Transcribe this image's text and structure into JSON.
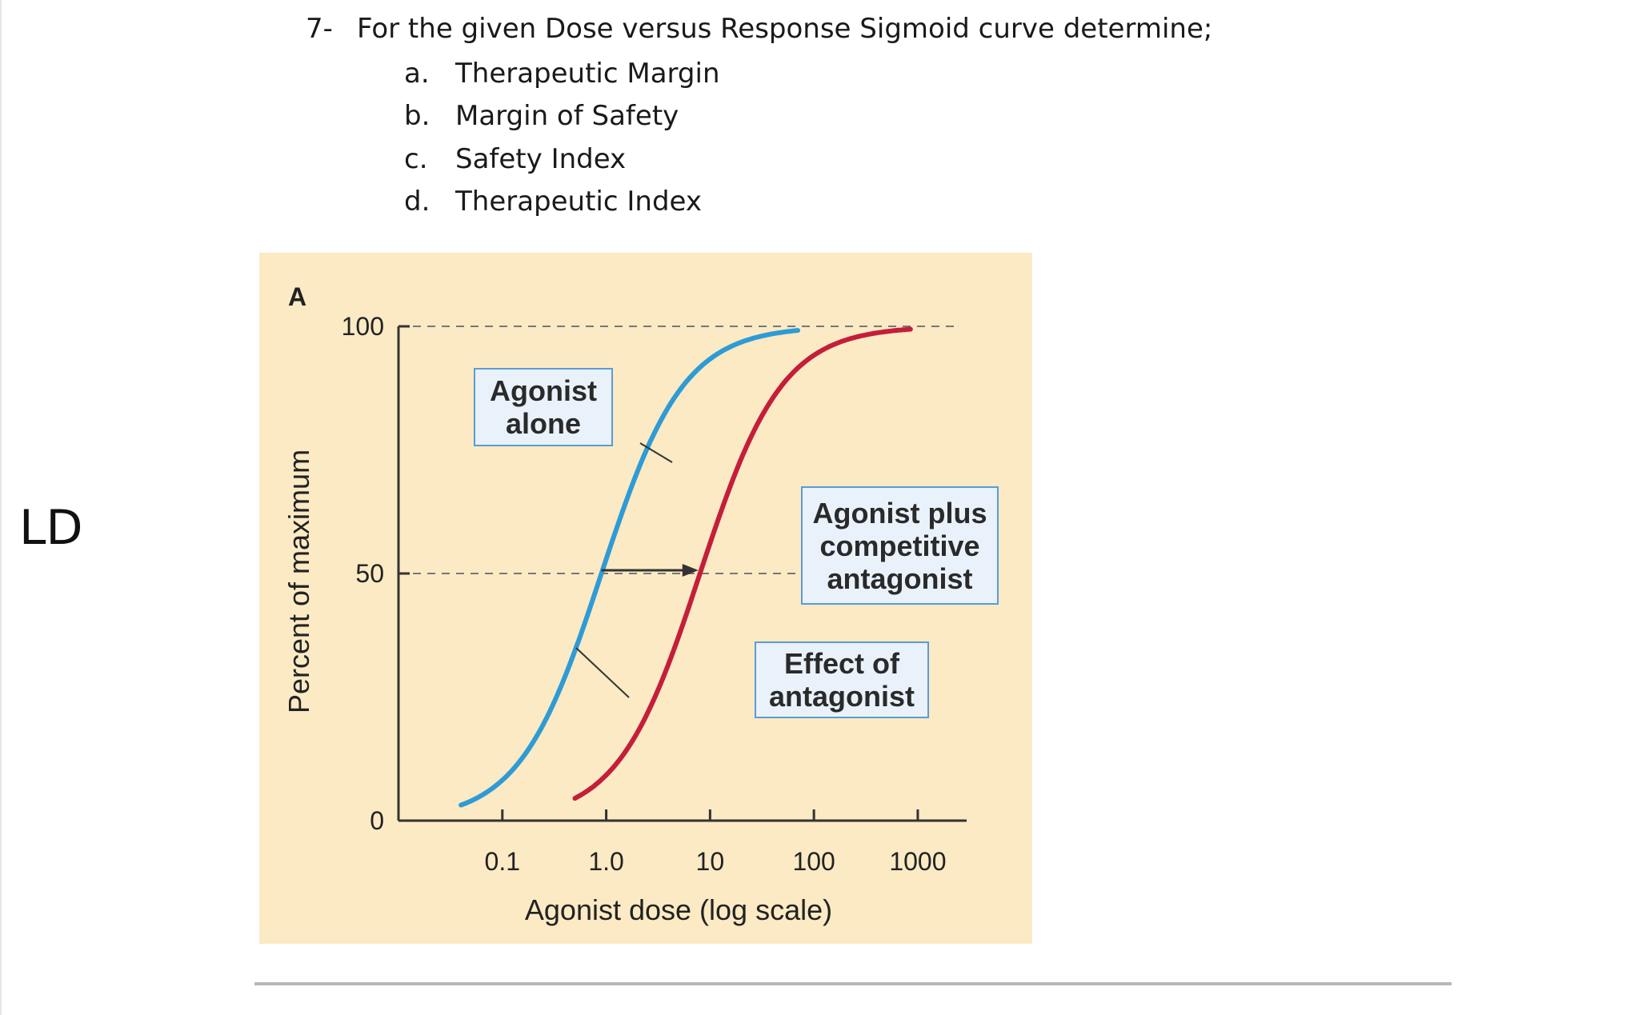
{
  "question": {
    "number": "7-",
    "text": "For the given Dose versus Response Sigmoid curve determine;",
    "options": [
      {
        "letter": "a.",
        "text": "Therapeutic Margin"
      },
      {
        "letter": "b.",
        "text": "Margin of Safety"
      },
      {
        "letter": "c.",
        "text": "Safety Index"
      },
      {
        "letter": "d.",
        "text": "Therapeutic Index"
      }
    ]
  },
  "side_label": "LD",
  "chart_data": {
    "type": "line",
    "panel_label": "A",
    "title": "",
    "xlabel": "Agonist dose (log scale)",
    "ylabel": "Percent of maximum",
    "x_scale": "log",
    "x_ticks": [
      {
        "value": 0.1,
        "label": "0.1"
      },
      {
        "value": 1,
        "label": "1.0"
      },
      {
        "value": 10,
        "label": "10"
      },
      {
        "value": 100,
        "label": "100"
      },
      {
        "value": 1000,
        "label": "1000"
      }
    ],
    "y_ticks": [
      {
        "value": 0,
        "label": "0"
      },
      {
        "value": 50,
        "label": "50"
      },
      {
        "value": 100,
        "label": "100"
      }
    ],
    "xlim": [
      0.01,
      2000
    ],
    "ylim": [
      0,
      100
    ],
    "grid": "dashed lines at 0, 50, 100",
    "series": [
      {
        "name": "Agonist alone",
        "color": "#2f9bd6",
        "ec50": 0.9,
        "x_range": [
          0.04,
          70
        ]
      },
      {
        "name": "Agonist plus competitive antagonist",
        "color": "#c41e3a",
        "ec50": 8,
        "x_range": [
          0.5,
          850
        ]
      }
    ],
    "annotations": [
      {
        "text": "Agonist alone",
        "points_to": "Agonist alone"
      },
      {
        "text": "Agonist plus competitive antagonist",
        "points_to": "Agonist plus competitive antagonist"
      },
      {
        "text": "Effect of antagonist",
        "points_to": "shift arrow at 50%"
      }
    ]
  }
}
